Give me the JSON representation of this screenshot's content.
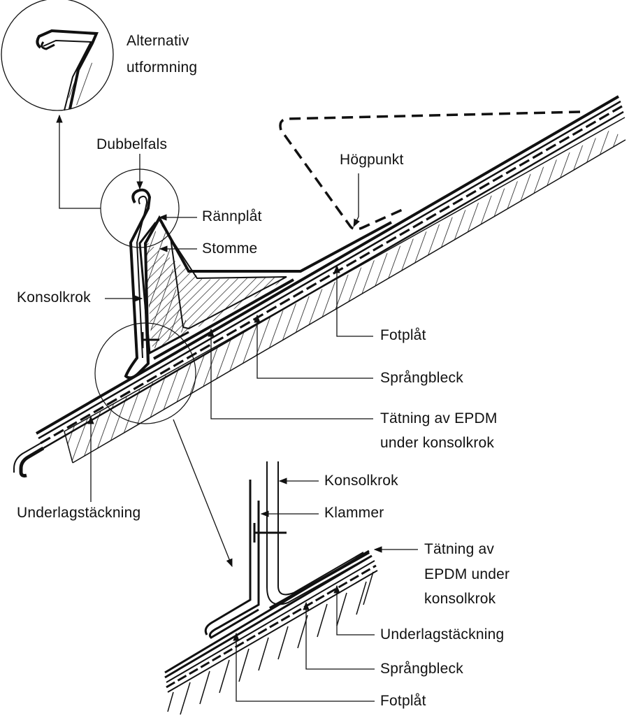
{
  "labels": {
    "alternativ_line1": "Alternativ",
    "alternativ_line2": "utformning",
    "dubbelfals": "Dubbelfals",
    "rannplat": "Rännplåt",
    "stomme": "Stomme",
    "hogpunkt": "Högpunkt",
    "konsolkrok": "Konsolkrok",
    "fotplat": "Fotplåt",
    "sprangbleck": "Språngbleck",
    "tatning_line1": "Tätning av EPDM",
    "tatning_line2": "under konsolkrok",
    "underlagstackning": "Underlagstäckning"
  },
  "detail_labels": {
    "konsolkrok": "Konsolkrok",
    "klammer": "Klammer",
    "tatning_line1": "Tätning av",
    "tatning_line2": "EPDM under",
    "tatning_line3": "konsolkrok",
    "underlagstackning": "Underlagstäckning",
    "sprangbleck": "Språngbleck",
    "fotplat": "Fotplåt"
  }
}
